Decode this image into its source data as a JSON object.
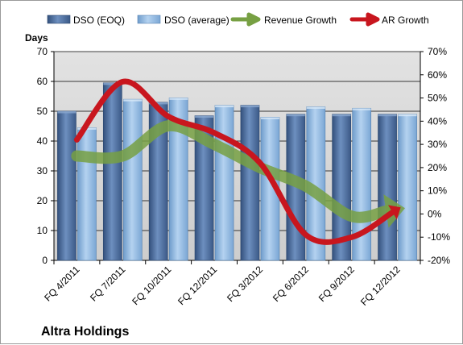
{
  "chart_data": {
    "type": "bar",
    "title": "Altra Holdings",
    "ylabel": "Days",
    "ylim": [
      0,
      70
    ],
    "y_ticks": [
      0,
      10,
      20,
      30,
      40,
      50,
      60,
      70
    ],
    "y2lim": [
      -20,
      70
    ],
    "y2_ticks": [
      "-20%",
      "-10%",
      "0%",
      "10%",
      "20%",
      "30%",
      "40%",
      "50%",
      "60%",
      "70%"
    ],
    "grid": true,
    "legend_position": "top",
    "categories": [
      "FQ 4/2011",
      "FQ 7/2011",
      "FQ 10/2011",
      "FQ 12/2011",
      "FQ 3/2012",
      "FQ 6/2012",
      "FQ 9/2012",
      "FQ 12/2012"
    ],
    "series": [
      {
        "name": "DSO (EOQ)",
        "type": "bar",
        "axis": "left",
        "color": "#4a6a9a",
        "values": [
          50,
          59.5,
          53,
          48.5,
          52,
          49,
          49,
          49
        ]
      },
      {
        "name": "DSO (average)",
        "type": "bar",
        "axis": "left",
        "color": "#8cb4dc",
        "values": [
          44.5,
          54,
          54.5,
          52,
          48,
          51.5,
          51,
          49
        ]
      },
      {
        "name": "Revenue Growth",
        "type": "line",
        "axis": "right",
        "color": "#77a043",
        "values": [
          25,
          25,
          38,
          30,
          20,
          12,
          -1,
          2
        ]
      },
      {
        "name": "AR Growth",
        "type": "line",
        "axis": "right",
        "color": "#c8161e",
        "values": [
          32,
          57,
          42,
          35,
          22,
          -9,
          -10,
          2
        ]
      }
    ]
  }
}
